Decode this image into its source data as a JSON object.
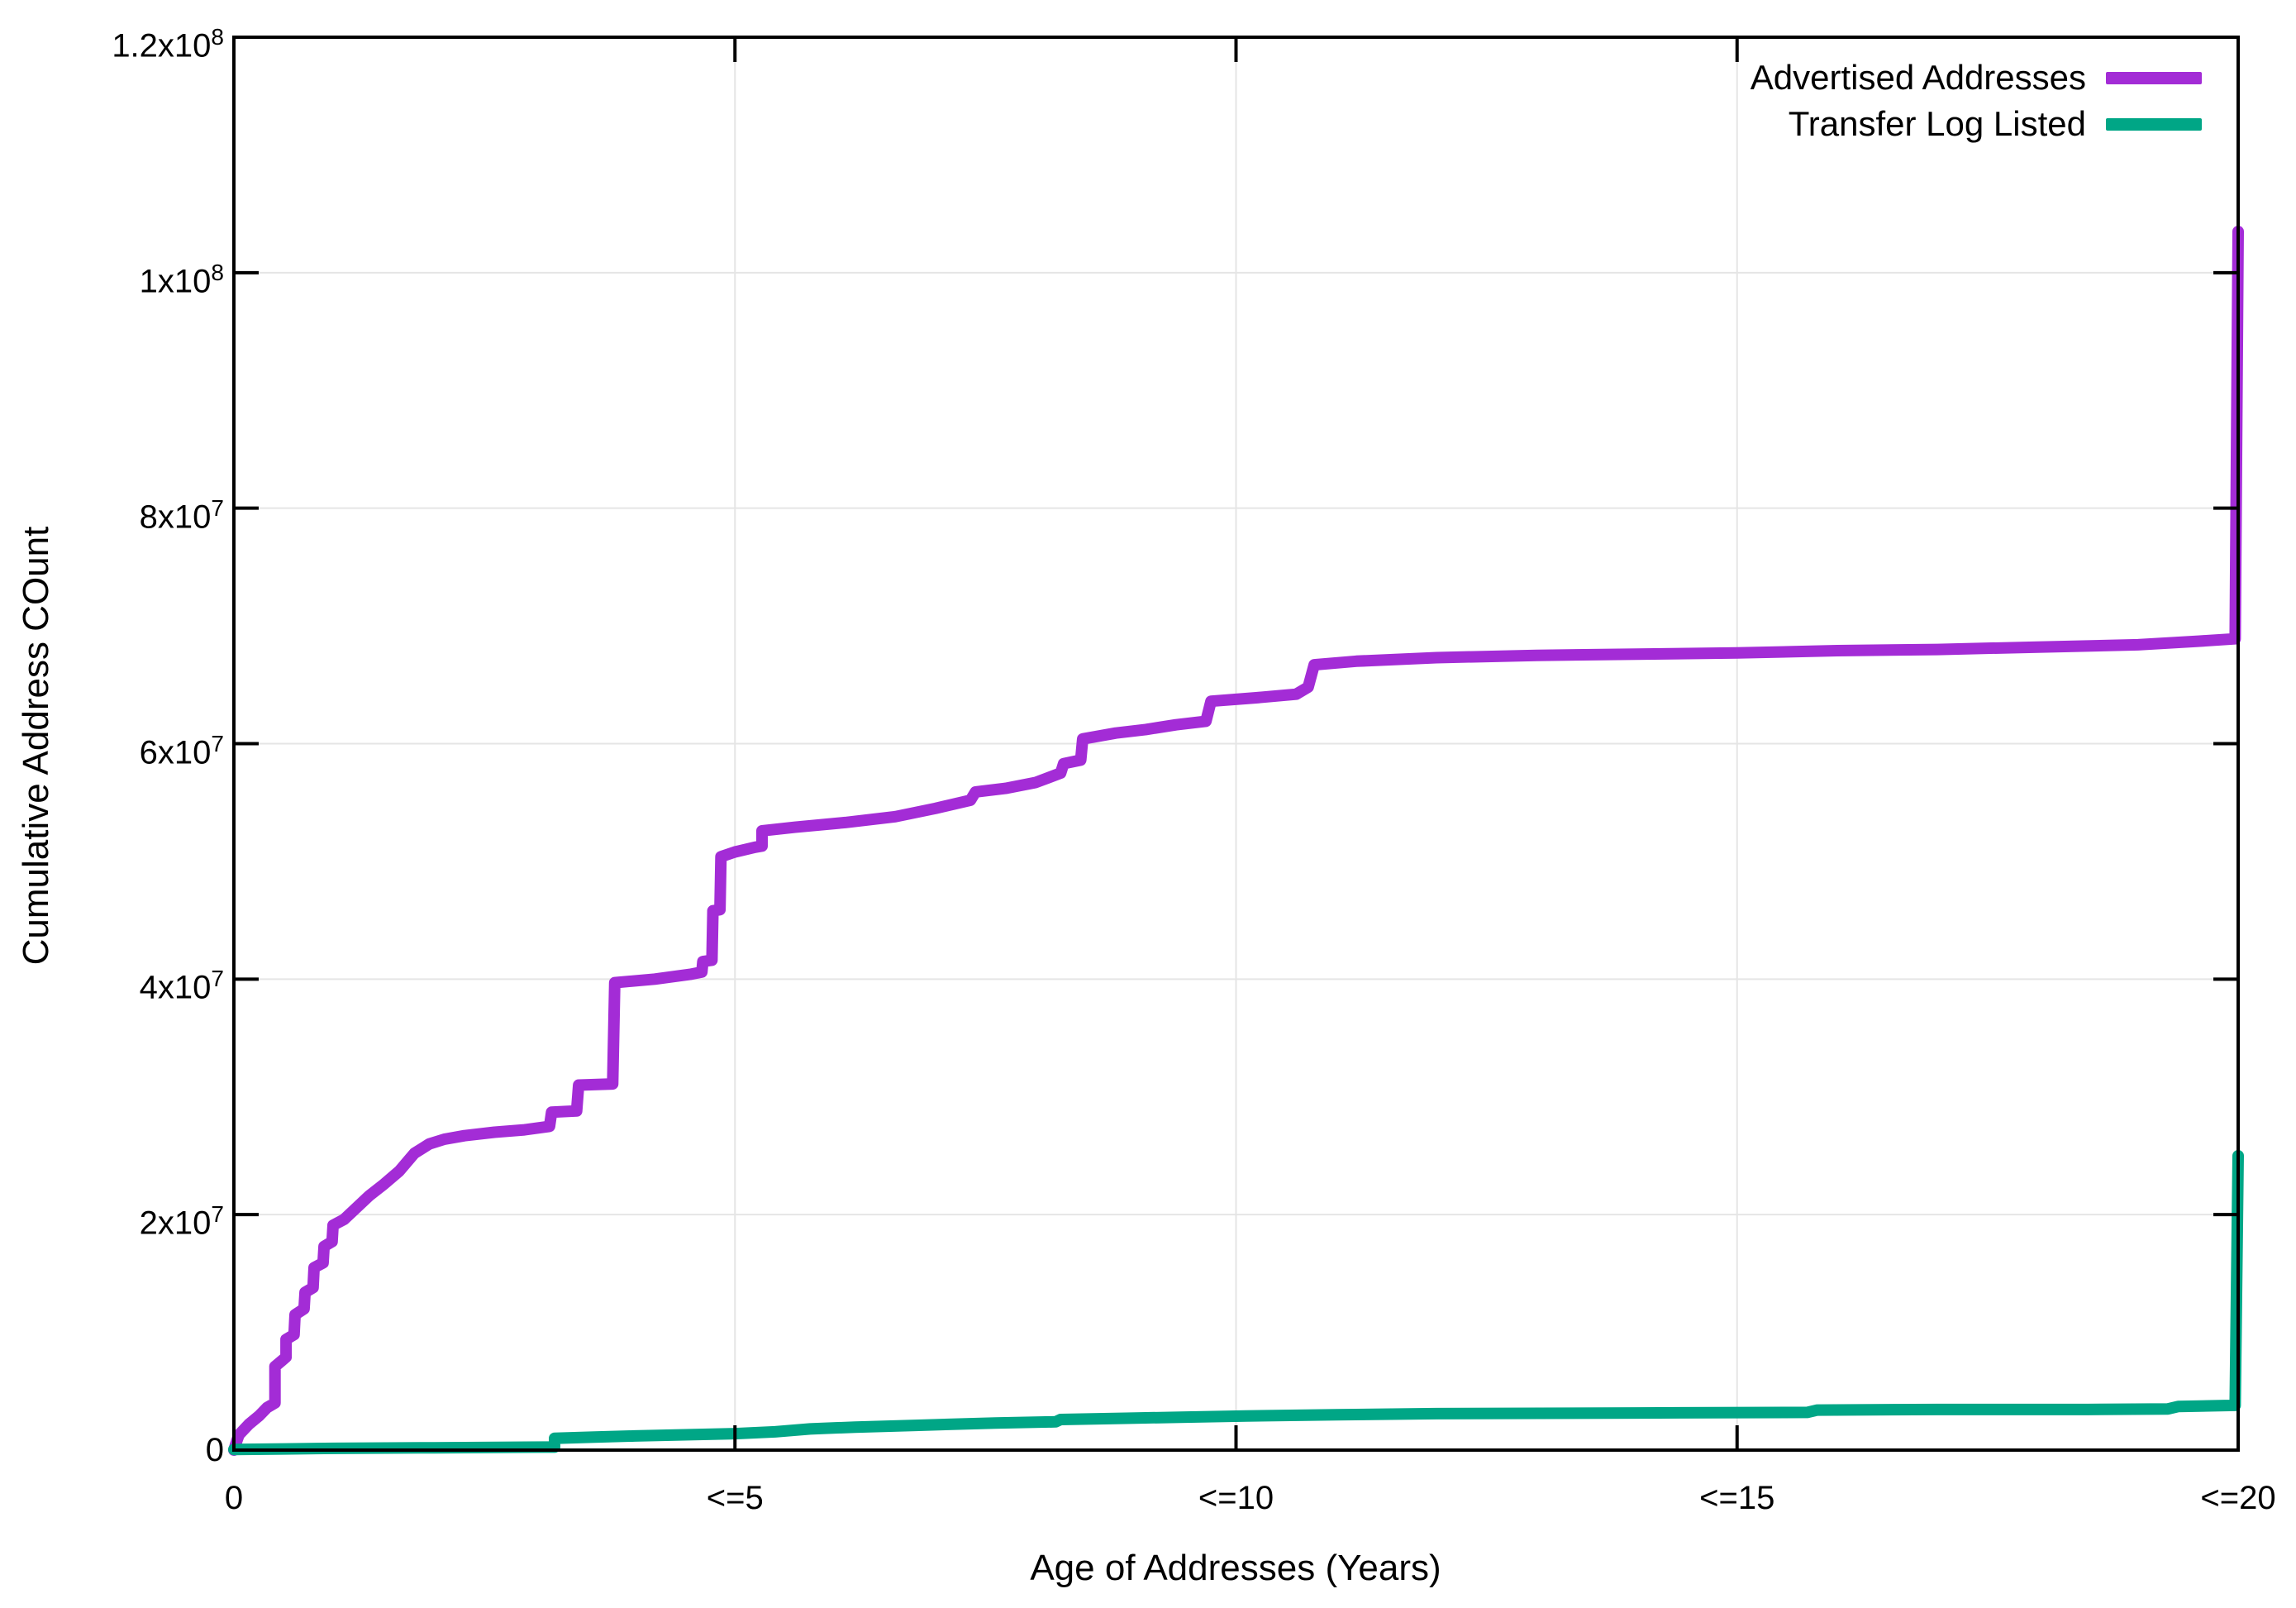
{
  "page": {
    "background": "#ffffff"
  },
  "chart_data": {
    "type": "line",
    "title": "",
    "xlabel": "Age of Addresses (Years)",
    "ylabel": "Cumulative Address COunt",
    "xlim": [
      0,
      20
    ],
    "ylim": [
      0,
      120000000
    ],
    "grid": true,
    "legend_position": "top-right-inside",
    "grid_color": "#e5e5e5",
    "axis_color": "#000000",
    "xticks": [
      {
        "v": 0,
        "label": "0"
      },
      {
        "v": 5,
        "label": "<=5"
      },
      {
        "v": 10,
        "label": "<=10"
      },
      {
        "v": 15,
        "label": "<=15"
      },
      {
        "v": 20,
        "label": "<=20"
      }
    ],
    "yticks": [
      {
        "v": 0,
        "mantissa": "0",
        "exp": ""
      },
      {
        "v": 20000000,
        "mantissa": "2x10",
        "exp": "7"
      },
      {
        "v": 40000000,
        "mantissa": "4x10",
        "exp": "7"
      },
      {
        "v": 60000000,
        "mantissa": "6x10",
        "exp": "7"
      },
      {
        "v": 80000000,
        "mantissa": "8x10",
        "exp": "7"
      },
      {
        "v": 100000000,
        "mantissa": "1x10",
        "exp": "8"
      },
      {
        "v": 120000000,
        "mantissa": "1.2x10",
        "exp": "8"
      }
    ],
    "series": [
      {
        "name": "Advertised Addresses",
        "color": "#a32cd6",
        "line_width": 14,
        "points": [
          [
            0,
            0
          ],
          [
            0.03,
            800000
          ],
          [
            0.05,
            1300000
          ],
          [
            0.15,
            2200000
          ],
          [
            0.25,
            2900000
          ],
          [
            0.33,
            3600000
          ],
          [
            0.41,
            4000000
          ],
          [
            0.41,
            7100000
          ],
          [
            0.48,
            7600000
          ],
          [
            0.52,
            7900000
          ],
          [
            0.52,
            9400000
          ],
          [
            0.6,
            9800000
          ],
          [
            0.61,
            11500000
          ],
          [
            0.7,
            12000000
          ],
          [
            0.71,
            13400000
          ],
          [
            0.79,
            13800000
          ],
          [
            0.8,
            15500000
          ],
          [
            0.89,
            15900000
          ],
          [
            0.9,
            17300000
          ],
          [
            0.98,
            17700000
          ],
          [
            0.99,
            19100000
          ],
          [
            1.1,
            19600000
          ],
          [
            1.2,
            20400000
          ],
          [
            1.35,
            21600000
          ],
          [
            1.5,
            22600000
          ],
          [
            1.65,
            23700000
          ],
          [
            1.8,
            25200000
          ],
          [
            1.95,
            26000000
          ],
          [
            2.1,
            26400000
          ],
          [
            2.3,
            26700000
          ],
          [
            2.6,
            27000000
          ],
          [
            2.9,
            27200000
          ],
          [
            3.15,
            27500000
          ],
          [
            3.17,
            28700000
          ],
          [
            3.42,
            28800000
          ],
          [
            3.44,
            31000000
          ],
          [
            3.78,
            31100000
          ],
          [
            3.8,
            39700000
          ],
          [
            4.2,
            40000000
          ],
          [
            4.55,
            40400000
          ],
          [
            4.67,
            40600000
          ],
          [
            4.68,
            41500000
          ],
          [
            4.77,
            41600000
          ],
          [
            4.78,
            45800000
          ],
          [
            4.85,
            45900000
          ],
          [
            4.86,
            50400000
          ],
          [
            5.0,
            50800000
          ],
          [
            5.2,
            51200000
          ],
          [
            5.27,
            51300000
          ],
          [
            5.27,
            52600000
          ],
          [
            5.6,
            52900000
          ],
          [
            6.1,
            53300000
          ],
          [
            6.6,
            53800000
          ],
          [
            7.0,
            54500000
          ],
          [
            7.35,
            55200000
          ],
          [
            7.4,
            55900000
          ],
          [
            7.7,
            56200000
          ],
          [
            8.0,
            56700000
          ],
          [
            8.25,
            57500000
          ],
          [
            8.28,
            58300000
          ],
          [
            8.45,
            58600000
          ],
          [
            8.47,
            60400000
          ],
          [
            8.8,
            60900000
          ],
          [
            9.1,
            61200000
          ],
          [
            9.4,
            61600000
          ],
          [
            9.7,
            61900000
          ],
          [
            9.75,
            63600000
          ],
          [
            10.2,
            63900000
          ],
          [
            10.6,
            64200000
          ],
          [
            10.72,
            64800000
          ],
          [
            10.78,
            66700000
          ],
          [
            11.2,
            67000000
          ],
          [
            12.0,
            67300000
          ],
          [
            13.0,
            67500000
          ],
          [
            14.0,
            67600000
          ],
          [
            15.0,
            67700000
          ],
          [
            16.0,
            67900000
          ],
          [
            17.0,
            68000000
          ],
          [
            18.0,
            68200000
          ],
          [
            19.0,
            68400000
          ],
          [
            19.6,
            68700000
          ],
          [
            19.97,
            68900000
          ],
          [
            20.0,
            103500000
          ]
        ]
      },
      {
        "name": "Transfer Log Listed",
        "color": "#00a686",
        "line_width": 14,
        "points": [
          [
            0,
            50000
          ],
          [
            0.5,
            100000
          ],
          [
            1.0,
            150000
          ],
          [
            2.0,
            200000
          ],
          [
            3.1,
            250000
          ],
          [
            3.2,
            250000
          ],
          [
            3.2,
            1000000
          ],
          [
            3.6,
            1100000
          ],
          [
            4.0,
            1200000
          ],
          [
            4.5,
            1300000
          ],
          [
            5.0,
            1400000
          ],
          [
            5.4,
            1550000
          ],
          [
            5.75,
            1800000
          ],
          [
            6.2,
            1950000
          ],
          [
            6.8,
            2100000
          ],
          [
            7.6,
            2300000
          ],
          [
            8.2,
            2400000
          ],
          [
            8.25,
            2600000
          ],
          [
            8.9,
            2700000
          ],
          [
            9.5,
            2800000
          ],
          [
            10.1,
            2900000
          ],
          [
            11.0,
            3000000
          ],
          [
            12.0,
            3100000
          ],
          [
            14.0,
            3150000
          ],
          [
            15.7,
            3200000
          ],
          [
            15.8,
            3400000
          ],
          [
            17.0,
            3450000
          ],
          [
            18.5,
            3450000
          ],
          [
            19.3,
            3500000
          ],
          [
            19.4,
            3700000
          ],
          [
            19.97,
            3800000
          ],
          [
            20.0,
            25000000
          ]
        ]
      }
    ]
  }
}
